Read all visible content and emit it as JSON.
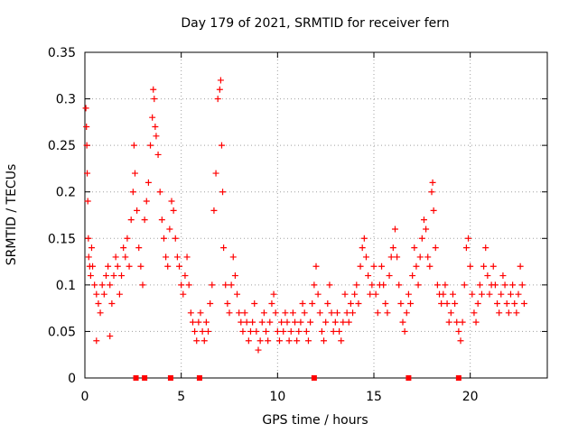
{
  "chart_data": {
    "type": "scatter",
    "title": "Day 179 of 2021, SRMTID for receiver fern",
    "xlabel": "GPS time / hours",
    "ylabel": "SRMTID / TECUs",
    "xlim": [
      0,
      24
    ],
    "ylim": [
      0,
      0.35
    ],
    "grid": true,
    "x_ticks": [
      0,
      5,
      10,
      15,
      20
    ],
    "x_tick_labels": [
      "0",
      "5",
      "10",
      "15",
      "20"
    ],
    "y_ticks": [
      0,
      0.05,
      0.1,
      0.15,
      0.2,
      0.25,
      0.3,
      0.35
    ],
    "y_tick_labels": [
      "0",
      "0.05",
      "0.1",
      "0.15",
      "0.2",
      "0.25",
      "0.3",
      "0.35"
    ],
    "marker": "+",
    "color": "#ff0000",
    "series": [
      {
        "name": "SRMTID",
        "points": [
          [
            0.05,
            0.29
          ],
          [
            0.08,
            0.27
          ],
          [
            0.1,
            0.25
          ],
          [
            0.12,
            0.22
          ],
          [
            0.15,
            0.19
          ],
          [
            0.18,
            0.15
          ],
          [
            0.2,
            0.13
          ],
          [
            0.25,
            0.12
          ],
          [
            0.3,
            0.11
          ],
          [
            0.35,
            0.14
          ],
          [
            0.4,
            0.12
          ],
          [
            0.5,
            0.1
          ],
          [
            0.6,
            0.09
          ],
          [
            0.7,
            0.08
          ],
          [
            0.6,
            0.04
          ],
          [
            0.8,
            0.07
          ],
          [
            0.9,
            0.1
          ],
          [
            1.0,
            0.09
          ],
          [
            1.1,
            0.11
          ],
          [
            1.2,
            0.12
          ],
          [
            1.3,
            0.1
          ],
          [
            1.4,
            0.08
          ],
          [
            1.5,
            0.11
          ],
          [
            1.6,
            0.13
          ],
          [
            1.7,
            0.12
          ],
          [
            1.8,
            0.09
          ],
          [
            1.3,
            0.045
          ],
          [
            1.9,
            0.11
          ],
          [
            2.0,
            0.14
          ],
          [
            2.1,
            0.13
          ],
          [
            2.2,
            0.15
          ],
          [
            2.3,
            0.12
          ],
          [
            2.4,
            0.17
          ],
          [
            2.5,
            0.2
          ],
          [
            2.55,
            0.25
          ],
          [
            2.6,
            0.22
          ],
          [
            2.7,
            0.18
          ],
          [
            2.8,
            0.14
          ],
          [
            2.9,
            0.12
          ],
          [
            3.0,
            0.1
          ],
          [
            3.1,
            0.17
          ],
          [
            3.2,
            0.19
          ],
          [
            3.3,
            0.21
          ],
          [
            3.4,
            0.25
          ],
          [
            3.5,
            0.28
          ],
          [
            3.55,
            0.31
          ],
          [
            3.6,
            0.3
          ],
          [
            3.65,
            0.27
          ],
          [
            3.7,
            0.26
          ],
          [
            3.8,
            0.24
          ],
          [
            3.9,
            0.2
          ],
          [
            4.0,
            0.17
          ],
          [
            4.1,
            0.15
          ],
          [
            4.2,
            0.13
          ],
          [
            4.3,
            0.12
          ],
          [
            4.4,
            0.16
          ],
          [
            4.5,
            0.19
          ],
          [
            4.6,
            0.18
          ],
          [
            4.7,
            0.15
          ],
          [
            4.8,
            0.13
          ],
          [
            4.9,
            0.12
          ],
          [
            5.0,
            0.1
          ],
          [
            5.1,
            0.09
          ],
          [
            5.2,
            0.11
          ],
          [
            5.3,
            0.13
          ],
          [
            5.4,
            0.1
          ],
          [
            5.5,
            0.07
          ],
          [
            5.6,
            0.06
          ],
          [
            5.7,
            0.05
          ],
          [
            5.8,
            0.04
          ],
          [
            5.9,
            0.06
          ],
          [
            6.0,
            0.07
          ],
          [
            6.1,
            0.05
          ],
          [
            6.2,
            0.04
          ],
          [
            6.3,
            0.06
          ],
          [
            6.4,
            0.05
          ],
          [
            6.5,
            0.08
          ],
          [
            6.6,
            0.1
          ],
          [
            6.7,
            0.18
          ],
          [
            6.8,
            0.22
          ],
          [
            6.9,
            0.3
          ],
          [
            7.0,
            0.31
          ],
          [
            7.05,
            0.32
          ],
          [
            7.1,
            0.25
          ],
          [
            7.15,
            0.2
          ],
          [
            7.2,
            0.14
          ],
          [
            7.3,
            0.1
          ],
          [
            7.4,
            0.08
          ],
          [
            7.5,
            0.07
          ],
          [
            7.6,
            0.1
          ],
          [
            7.7,
            0.13
          ],
          [
            7.8,
            0.11
          ],
          [
            7.9,
            0.09
          ],
          [
            8.0,
            0.07
          ],
          [
            8.1,
            0.06
          ],
          [
            8.2,
            0.05
          ],
          [
            8.3,
            0.07
          ],
          [
            8.4,
            0.06
          ],
          [
            8.5,
            0.04
          ],
          [
            8.6,
            0.05
          ],
          [
            8.7,
            0.06
          ],
          [
            8.8,
            0.08
          ],
          [
            8.9,
            0.05
          ],
          [
            9.0,
            0.03
          ],
          [
            9.1,
            0.04
          ],
          [
            9.2,
            0.06
          ],
          [
            9.3,
            0.07
          ],
          [
            9.4,
            0.05
          ],
          [
            9.5,
            0.04
          ],
          [
            9.6,
            0.06
          ],
          [
            9.7,
            0.08
          ],
          [
            9.8,
            0.09
          ],
          [
            9.9,
            0.07
          ],
          [
            10.0,
            0.05
          ],
          [
            10.1,
            0.04
          ],
          [
            10.2,
            0.06
          ],
          [
            10.3,
            0.05
          ],
          [
            10.4,
            0.07
          ],
          [
            10.5,
            0.06
          ],
          [
            10.6,
            0.04
          ],
          [
            10.7,
            0.05
          ],
          [
            10.8,
            0.07
          ],
          [
            10.9,
            0.06
          ],
          [
            11.0,
            0.04
          ],
          [
            11.1,
            0.05
          ],
          [
            11.2,
            0.06
          ],
          [
            11.3,
            0.08
          ],
          [
            11.4,
            0.07
          ],
          [
            11.5,
            0.05
          ],
          [
            11.6,
            0.04
          ],
          [
            11.7,
            0.06
          ],
          [
            11.8,
            0.08
          ],
          [
            11.9,
            0.1
          ],
          [
            12.0,
            0.12
          ],
          [
            12.1,
            0.09
          ],
          [
            12.2,
            0.07
          ],
          [
            12.3,
            0.05
          ],
          [
            12.4,
            0.04
          ],
          [
            12.5,
            0.06
          ],
          [
            12.6,
            0.08
          ],
          [
            12.7,
            0.1
          ],
          [
            12.8,
            0.07
          ],
          [
            12.9,
            0.05
          ],
          [
            13.0,
            0.06
          ],
          [
            13.1,
            0.07
          ],
          [
            13.2,
            0.05
          ],
          [
            13.3,
            0.04
          ],
          [
            13.4,
            0.06
          ],
          [
            13.5,
            0.09
          ],
          [
            13.6,
            0.07
          ],
          [
            13.7,
            0.06
          ],
          [
            13.8,
            0.08
          ],
          [
            13.9,
            0.07
          ],
          [
            14.0,
            0.09
          ],
          [
            14.1,
            0.1
          ],
          [
            14.2,
            0.08
          ],
          [
            14.3,
            0.12
          ],
          [
            14.4,
            0.14
          ],
          [
            14.5,
            0.15
          ],
          [
            14.6,
            0.13
          ],
          [
            14.7,
            0.11
          ],
          [
            14.8,
            0.09
          ],
          [
            14.9,
            0.1
          ],
          [
            15.0,
            0.12
          ],
          [
            15.1,
            0.09
          ],
          [
            15.2,
            0.07
          ],
          [
            15.3,
            0.1
          ],
          [
            15.4,
            0.12
          ],
          [
            15.5,
            0.1
          ],
          [
            15.6,
            0.08
          ],
          [
            15.7,
            0.07
          ],
          [
            15.8,
            0.11
          ],
          [
            15.9,
            0.13
          ],
          [
            16.0,
            0.14
          ],
          [
            16.1,
            0.16
          ],
          [
            16.2,
            0.13
          ],
          [
            16.3,
            0.1
          ],
          [
            16.4,
            0.08
          ],
          [
            16.5,
            0.06
          ],
          [
            16.6,
            0.05
          ],
          [
            16.7,
            0.07
          ],
          [
            16.8,
            0.09
          ],
          [
            16.9,
            0.08
          ],
          [
            17.0,
            0.11
          ],
          [
            17.1,
            0.14
          ],
          [
            17.2,
            0.12
          ],
          [
            17.3,
            0.1
          ],
          [
            17.4,
            0.13
          ],
          [
            17.5,
            0.15
          ],
          [
            17.6,
            0.17
          ],
          [
            17.7,
            0.16
          ],
          [
            17.8,
            0.13
          ],
          [
            17.9,
            0.12
          ],
          [
            18.0,
            0.2
          ],
          [
            18.05,
            0.21
          ],
          [
            18.1,
            0.18
          ],
          [
            18.2,
            0.14
          ],
          [
            18.3,
            0.1
          ],
          [
            18.4,
            0.09
          ],
          [
            18.5,
            0.08
          ],
          [
            18.6,
            0.09
          ],
          [
            18.7,
            0.1
          ],
          [
            18.8,
            0.08
          ],
          [
            18.9,
            0.06
          ],
          [
            19.0,
            0.07
          ],
          [
            19.1,
            0.09
          ],
          [
            19.2,
            0.08
          ],
          [
            19.3,
            0.06
          ],
          [
            19.4,
            0.05
          ],
          [
            19.5,
            0.04
          ],
          [
            19.6,
            0.06
          ],
          [
            19.7,
            0.1
          ],
          [
            19.8,
            0.14
          ],
          [
            19.9,
            0.15
          ],
          [
            20.0,
            0.12
          ],
          [
            20.1,
            0.09
          ],
          [
            20.2,
            0.07
          ],
          [
            20.3,
            0.06
          ],
          [
            20.4,
            0.08
          ],
          [
            20.5,
            0.1
          ],
          [
            20.6,
            0.09
          ],
          [
            20.7,
            0.12
          ],
          [
            20.8,
            0.14
          ],
          [
            20.9,
            0.11
          ],
          [
            21.0,
            0.09
          ],
          [
            21.1,
            0.1
          ],
          [
            21.2,
            0.12
          ],
          [
            21.3,
            0.1
          ],
          [
            21.4,
            0.08
          ],
          [
            21.5,
            0.07
          ],
          [
            21.6,
            0.09
          ],
          [
            21.7,
            0.11
          ],
          [
            21.8,
            0.1
          ],
          [
            21.9,
            0.08
          ],
          [
            22.0,
            0.07
          ],
          [
            22.1,
            0.09
          ],
          [
            22.2,
            0.1
          ],
          [
            22.3,
            0.08
          ],
          [
            22.4,
            0.07
          ],
          [
            22.5,
            0.09
          ],
          [
            22.6,
            0.12
          ],
          [
            22.7,
            0.1
          ],
          [
            22.8,
            0.08
          ]
        ]
      }
    ],
    "markers_on_x_axis": [
      2.65,
      3.1,
      4.45,
      5.95,
      11.9,
      16.8,
      19.4
    ]
  }
}
